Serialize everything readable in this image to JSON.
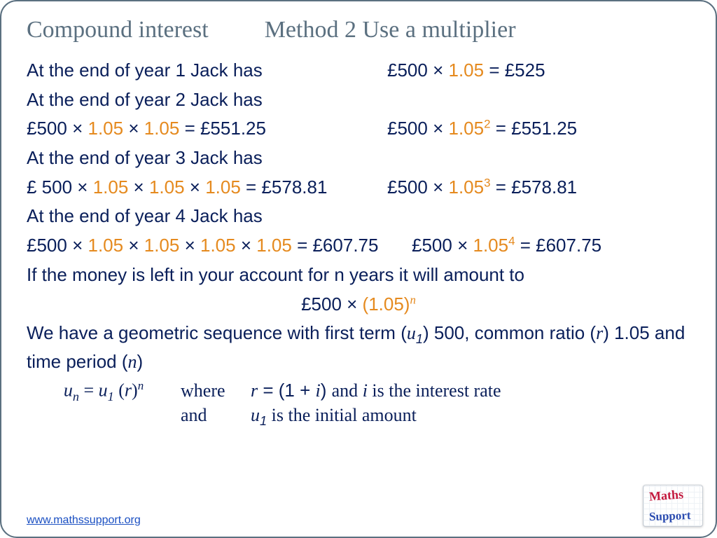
{
  "colors": {
    "heading": "#5b7080",
    "body": "#0a1f5a",
    "multiplier": "#e58a1f",
    "link": "#1a4fc2",
    "background": "#ffffff",
    "border": "#5b7080"
  },
  "fonts": {
    "heading_family": "Comic Sans MS",
    "body_family": "Arial",
    "math_family": "Times New Roman",
    "heading_size_pt": 26,
    "body_size_pt": 20
  },
  "title_left": "Compound interest",
  "title_right": "Method 2 Use a multiplier",
  "year1": {
    "label": "At the end of year 1 Jack has",
    "eq_l": "£500 × ",
    "eq_m": "1.05",
    "eq_r": " = £525"
  },
  "year2": {
    "label": "At the end of year 2 Jack has",
    "long_a": "£500 × ",
    "long_b": " × ",
    "long_c": " = £551.25",
    "m": "1.05",
    "short_a": "£500 × ",
    "short_exp": "2",
    "short_c": " = £551.25"
  },
  "year3": {
    "label": "At the end of year 3 Jack has",
    "long_a": "£ 500 × ",
    "long_b": " × ",
    "long_c": " × ",
    "long_d": " = £578.81",
    "m": "1.05",
    "short_a": "£500 × ",
    "short_exp": "3",
    "short_c": " = £578.81"
  },
  "year4": {
    "label": "At the end of year 4 Jack has",
    "long_a": "£500 × ",
    "long_b": " × ",
    "long_c": " × ",
    "long_d": " × ",
    "long_e": " = £607.75",
    "m": "1.05",
    "short_a": "£500 × ",
    "short_exp": "4",
    "short_c": " = £607.75"
  },
  "general": {
    "text": "If the money is left in your account for n years it will amount to",
    "eq_a": "£500 × ",
    "eq_m": "(1.05)",
    "eq_exp": "n"
  },
  "seq": {
    "p1": "We have a geometric sequence with first term (",
    "u1": "u",
    "u1s": "1",
    "p2": ") 500, common ratio (",
    "r": "r",
    "p3": ") 1.05 and time period (",
    "n": "n",
    "p4": ")"
  },
  "formula": {
    "un": "u",
    "ns": "n",
    "eq": " = ",
    "u1": "u",
    "s1": "1",
    "sp": " (",
    "r": "r",
    "cp": ")",
    "exp": "n"
  },
  "def1": {
    "label": "where",
    "r": "r",
    "mid": " = (1 + ",
    "i": "i",
    "close": ") ",
    "rest1": "and ",
    "ivar": "i",
    "rest2": " is the interest rate"
  },
  "def2": {
    "label": "and",
    "u": "u",
    "s1": "1",
    "rest": " is the initial amount"
  },
  "link": "www.mathssupport.org",
  "logo": {
    "t": "Maths",
    "b": "Support"
  }
}
